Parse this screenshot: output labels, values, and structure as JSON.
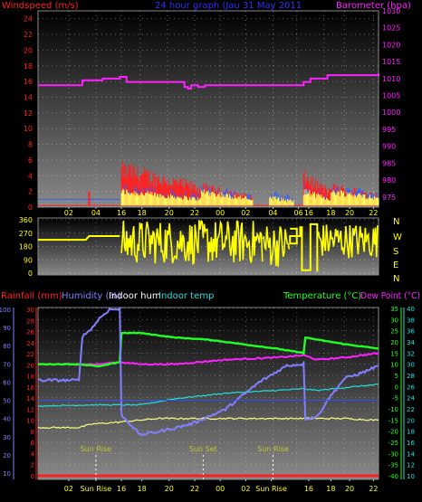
{
  "colors": {
    "wind": "#ff2020",
    "baro": "#ff20ff",
    "title": "#3030ff",
    "winddir": "#ffff00",
    "tick": "#ffff00",
    "rain": "#ff2020",
    "humidity": "#8080ff",
    "indoorhum": "#ffffff",
    "indoortemp": "#20e0e0",
    "temperature": "#20ff20",
    "dewpoint": "#ff20ff",
    "sun": "#c8c820"
  },
  "chart_data": [
    {
      "type": "line",
      "title": "24 hour graph (Jau 31 May 2011",
      "ylabel": "Windspeed (m/s)",
      "y2label": "Barometer (hpa)",
      "x_ticks": [
        "02",
        "04",
        "16",
        "18",
        "20",
        "22",
        "00",
        "02",
        "04",
        "06",
        "08",
        "16",
        "18",
        "20",
        "22"
      ],
      "ylim": [
        0,
        25
      ],
      "yticks": [
        "0",
        "2",
        "4",
        "6",
        "8",
        "10",
        "12",
        "14",
        "16",
        "18",
        "20",
        "22",
        "24"
      ],
      "y2lim": [
        972,
        1030
      ],
      "y2ticks": [
        "975",
        "980",
        "985",
        "990",
        "995",
        "1000",
        "1005",
        "1010",
        "1015",
        "1020",
        "1025",
        "1030"
      ],
      "barometer_steps": [
        {
          "x": 0.0,
          "y": 1008.0
        },
        {
          "x": 0.13,
          "y": 1009.5
        },
        {
          "x": 0.19,
          "y": 1010.0
        },
        {
          "x": 0.24,
          "y": 1010.5
        },
        {
          "x": 0.26,
          "y": 1009.0
        },
        {
          "x": 0.43,
          "y": 1007.5
        },
        {
          "x": 0.44,
          "y": 1007.0
        },
        {
          "x": 0.45,
          "y": 1008.0
        },
        {
          "x": 0.47,
          "y": 1007.5
        },
        {
          "x": 0.49,
          "y": 1008.0
        },
        {
          "x": 0.78,
          "y": 1009.0
        },
        {
          "x": 0.8,
          "y": 1010.0
        },
        {
          "x": 0.82,
          "y": 1010.0
        },
        {
          "x": 0.85,
          "y": 1011.0
        },
        {
          "x": 1.0,
          "y": 1011.5
        }
      ],
      "wind_baseline": 1.0,
      "wind_gust_peak": 6.0,
      "wind_avg_peak": 2.5
    },
    {
      "type": "line",
      "title": "Wind direction",
      "y2ticks": [
        "N",
        "W",
        "S",
        "E",
        "N"
      ],
      "yticks": [
        "0",
        "90",
        "180",
        "270",
        "360"
      ],
      "ylim": [
        0,
        360
      ],
      "x_ticks": [
        "02",
        "04",
        "16",
        "18",
        "20",
        "22",
        "00",
        "02",
        "04",
        "06",
        "08",
        "16",
        "18",
        "20",
        "22"
      ],
      "steady_segment": [
        {
          "x": 0.0,
          "y": 225
        },
        {
          "x": 0.14,
          "y": 225
        },
        {
          "x": 0.15,
          "y": 250
        },
        {
          "x": 0.24,
          "y": 250
        }
      ]
    },
    {
      "type": "line",
      "title": "",
      "legend": [
        "Rainfall (mm)",
        "Humidity (%)",
        "Indoor hum",
        "Indoor temp",
        "Temperature (°C)",
        "Dew Point (°C)"
      ],
      "x_ticks": [
        "02",
        "Sun Rise",
        "16",
        "18",
        "20",
        "22",
        "00",
        "02",
        "Sun Rise",
        "16",
        "18",
        "20",
        "22"
      ],
      "annotations": [
        "Sun Rise",
        "Sun Set",
        "Sun Rise"
      ],
      "rain_ylim": [
        0,
        30
      ],
      "rain_ticks": [
        "0",
        "2",
        "4",
        "6",
        "8",
        "10",
        "12",
        "14",
        "16",
        "18",
        "20",
        "22",
        "24",
        "26",
        "28",
        "30"
      ],
      "hum_ylim": [
        0,
        100
      ],
      "hum_ticks": [
        "10",
        "20",
        "30",
        "40",
        "50",
        "60",
        "70",
        "80",
        "90",
        "100"
      ],
      "temp_ylim": [
        -40,
        35
      ],
      "temp_ticks": [
        "-40",
        "-35",
        "-30",
        "-25",
        "-20",
        "-15",
        "-10",
        "-5",
        "0",
        "5",
        "10",
        "15",
        "20",
        "25",
        "30",
        "35"
      ],
      "indoor_ticks": [
        "10",
        "12",
        "14",
        "16",
        "18",
        "20",
        "22",
        "24",
        "26",
        "28",
        "30",
        "32",
        "34",
        "36",
        "38",
        "40"
      ],
      "humidity": [
        {
          "x": 0.0,
          "y": 61
        },
        {
          "x": 0.12,
          "y": 61
        },
        {
          "x": 0.13,
          "y": 85
        },
        {
          "x": 0.16,
          "y": 90
        },
        {
          "x": 0.18,
          "y": 95
        },
        {
          "x": 0.21,
          "y": 100
        },
        {
          "x": 0.24,
          "y": 100
        },
        {
          "x": 0.245,
          "y": 42
        },
        {
          "x": 0.3,
          "y": 31
        },
        {
          "x": 0.36,
          "y": 33
        },
        {
          "x": 0.45,
          "y": 37
        },
        {
          "x": 0.55,
          "y": 45
        },
        {
          "x": 0.65,
          "y": 60
        },
        {
          "x": 0.73,
          "y": 69
        },
        {
          "x": 0.78,
          "y": 70
        },
        {
          "x": 0.785,
          "y": 40
        },
        {
          "x": 0.82,
          "y": 41
        },
        {
          "x": 0.85,
          "y": 50
        },
        {
          "x": 0.9,
          "y": 62
        },
        {
          "x": 0.95,
          "y": 65
        },
        {
          "x": 1.0,
          "y": 69
        }
      ],
      "temperature": [
        {
          "x": 0.0,
          "y": 10
        },
        {
          "x": 0.12,
          "y": 10
        },
        {
          "x": 0.18,
          "y": 9
        },
        {
          "x": 0.24,
          "y": 11
        },
        {
          "x": 0.245,
          "y": 24
        },
        {
          "x": 0.3,
          "y": 24
        },
        {
          "x": 0.4,
          "y": 22
        },
        {
          "x": 0.5,
          "y": 21
        },
        {
          "x": 0.6,
          "y": 19
        },
        {
          "x": 0.7,
          "y": 17
        },
        {
          "x": 0.78,
          "y": 15
        },
        {
          "x": 0.785,
          "y": 22
        },
        {
          "x": 0.82,
          "y": 21
        },
        {
          "x": 0.9,
          "y": 19
        },
        {
          "x": 1.0,
          "y": 17
        }
      ],
      "dewpoint": [
        {
          "x": 0.0,
          "y": 10
        },
        {
          "x": 0.12,
          "y": 10
        },
        {
          "x": 0.18,
          "y": 10
        },
        {
          "x": 0.24,
          "y": 11
        },
        {
          "x": 0.3,
          "y": 10
        },
        {
          "x": 0.4,
          "y": 10
        },
        {
          "x": 0.55,
          "y": 12
        },
        {
          "x": 0.7,
          "y": 13
        },
        {
          "x": 0.78,
          "y": 14
        },
        {
          "x": 0.82,
          "y": 12
        },
        {
          "x": 0.9,
          "y": 13
        },
        {
          "x": 1.0,
          "y": 15
        }
      ],
      "indoortemp": [
        {
          "x": 0.0,
          "y": 22.5
        },
        {
          "x": 0.15,
          "y": 22.7
        },
        {
          "x": 0.3,
          "y": 22.7
        },
        {
          "x": 0.4,
          "y": 23.8
        },
        {
          "x": 0.55,
          "y": 24.8
        },
        {
          "x": 0.7,
          "y": 25.3
        },
        {
          "x": 0.78,
          "y": 25.6
        },
        {
          "x": 0.82,
          "y": 25.3
        },
        {
          "x": 0.9,
          "y": 25.8
        },
        {
          "x": 1.0,
          "y": 26.4
        }
      ],
      "indoorhum": [
        {
          "x": 0.0,
          "y": 35
        },
        {
          "x": 0.12,
          "y": 35
        },
        {
          "x": 0.16,
          "y": 37
        },
        {
          "x": 0.24,
          "y": 38
        },
        {
          "x": 0.35,
          "y": 40
        },
        {
          "x": 0.55,
          "y": 40
        },
        {
          "x": 0.78,
          "y": 40
        },
        {
          "x": 0.82,
          "y": 40
        },
        {
          "x": 0.9,
          "y": 40
        },
        {
          "x": 1.0,
          "y": 39
        }
      ],
      "rainfall_total": 0
    }
  ],
  "labels": {
    "windspeed": "Windspeed (m/s)",
    "graph_title": "24 hour graph (Jau 31 May 2011",
    "barometer": "Barometer (hpa)",
    "rainfall": "Rainfall (mm)",
    "humidity": "Humidity (%)",
    "indoorhum": "Indoor hum",
    "indoortemp": "Indoor temp",
    "temperature": "Temperature (°C)",
    "dewpoint": "Dew Point (°C)"
  }
}
